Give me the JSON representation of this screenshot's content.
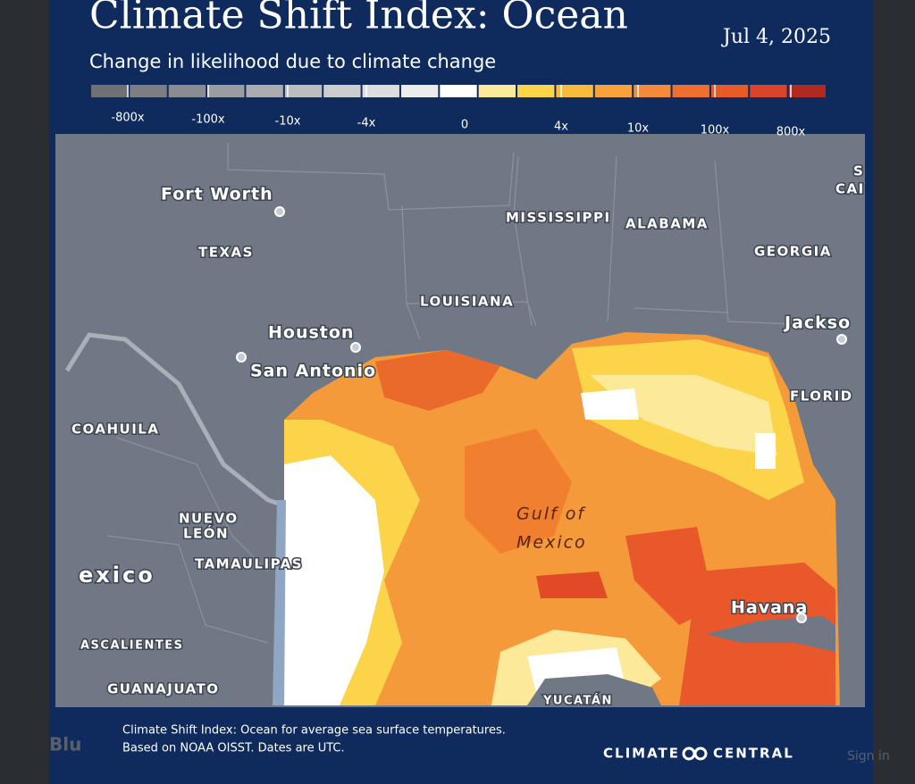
{
  "header": {
    "title": "Climate Shift Index: Ocean",
    "date": "Jul 4, 2025",
    "subtitle": "Change in likelihood due to climate change"
  },
  "legend": {
    "colors": [
      "#6f7175",
      "#7c7e82",
      "#8a8c90",
      "#9a9c9f",
      "#aaacaf",
      "#bbbdbf",
      "#cccdcf",
      "#dcdddf",
      "#ececed",
      "#ffffff",
      "#fde99a",
      "#fbd44a",
      "#f9bb3a",
      "#f7a23a",
      "#f48a3a",
      "#ef6f30",
      "#e85a28",
      "#d9442a",
      "#b12a22"
    ],
    "labels": [
      "-800x",
      "-100x",
      "-10x",
      "-4x",
      "0",
      "4x",
      "10x",
      "100x",
      "800x"
    ]
  },
  "map": {
    "places": [
      "Fort Worth",
      "TEXAS",
      "MISSISSIPPI",
      "ALABAMA",
      "GEORGIA",
      "LOUISIANA",
      "Houston",
      "San Antonio",
      "Jackso",
      "FLORID",
      "COAHUILA",
      "NUEVO",
      "LEÓN",
      "TAMAULIPAS",
      "exico",
      "ASCALIENTES",
      "GUANAJUATO",
      "Havana",
      "YUCATÁN",
      "S",
      "CAI"
    ],
    "sea_label": [
      "Gulf of",
      "Mexico"
    ]
  },
  "footer": {
    "lines": [
      "Climate Shift Index: Ocean for average sea surface temperatures.",
      "Based on NOAA OISST. Dates are UTC."
    ],
    "brand": [
      "CLIMATE",
      "CENTRAL"
    ]
  },
  "background": {
    "left": "Blu",
    "right": "Sign in"
  }
}
